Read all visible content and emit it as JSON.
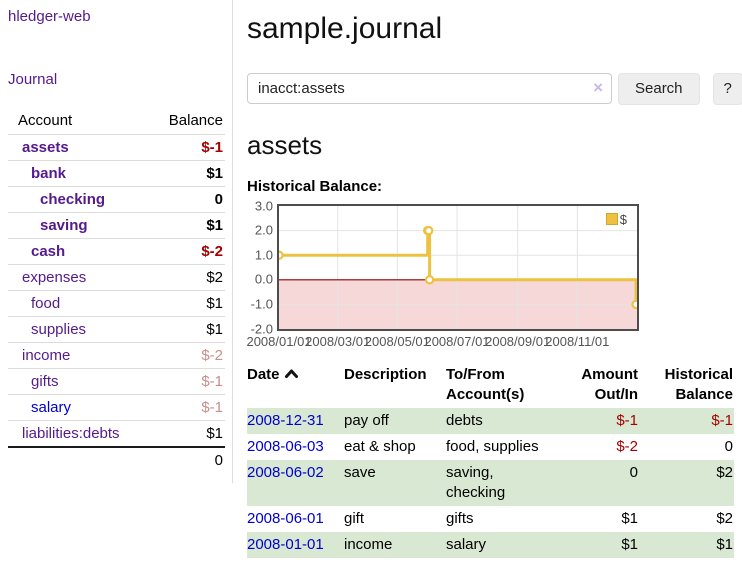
{
  "colors": {
    "purple_link": "#551a8b",
    "blue_link": "#0000cc",
    "negative": "#a40000",
    "negative_muted": "#c98d8d",
    "row_green": "#d9e8d3",
    "chart_yellow": "#edc240",
    "negative_region": "#f7d8d8",
    "zero_line": "#8b0000",
    "gridline": "#e4e4e4"
  },
  "app": {
    "brand": "hledger-web"
  },
  "sidebar": {
    "journal_link": "Journal",
    "accounts_table": {
      "account_header": "Account",
      "balance_header": "Balance",
      "rows": [
        {
          "account": "assets",
          "balance": "$-1",
          "level": 1,
          "bold": true,
          "balance_class": "neg",
          "link": "purple"
        },
        {
          "account": "bank",
          "balance": "$1",
          "level": 2,
          "bold": true,
          "balance_class": "",
          "link": "purple"
        },
        {
          "account": "checking",
          "balance": "0",
          "level": 3,
          "bold": true,
          "balance_class": "",
          "link": "purple"
        },
        {
          "account": "saving",
          "balance": "$1",
          "level": 3,
          "bold": true,
          "balance_class": "",
          "link": "purple"
        },
        {
          "account": "cash",
          "balance": "$-2",
          "level": 2,
          "bold": true,
          "balance_class": "neg",
          "link": "purple"
        },
        {
          "account": "expenses",
          "balance": "$2",
          "level": 1,
          "bold": false,
          "balance_class": "",
          "link": "purple"
        },
        {
          "account": "food",
          "balance": "$1",
          "level": 2,
          "bold": false,
          "balance_class": "",
          "link": "purple"
        },
        {
          "account": "supplies",
          "balance": "$1",
          "level": 2,
          "bold": false,
          "balance_class": "",
          "link": "purple"
        },
        {
          "account": "income",
          "balance": "$-2",
          "level": 1,
          "bold": false,
          "balance_class": "neg-muted",
          "link": "purple"
        },
        {
          "account": "gifts",
          "balance": "$-1",
          "level": 2,
          "bold": false,
          "balance_class": "neg-muted",
          "link": "purple"
        },
        {
          "account": "salary",
          "balance": "$-1",
          "level": 2,
          "bold": false,
          "balance_class": "neg-muted",
          "link": "blue"
        },
        {
          "account": "liabilities:debts",
          "balance": "$1",
          "level": 1,
          "bold": false,
          "balance_class": "",
          "link": "purple"
        }
      ],
      "total": "0"
    }
  },
  "main": {
    "title": "sample.journal",
    "search": {
      "value": "inacct:assets",
      "clear_icon": "×",
      "search_button": "Search",
      "help_button": "?"
    },
    "account_heading": "assets",
    "chart_heading": "Historical Balance:",
    "register": {
      "headers": {
        "date": "Date",
        "description": "Description",
        "accounts": "To/From Account(s)",
        "amount": "Amount Out/In",
        "balance": "Historical Balance"
      },
      "rows": [
        {
          "date": "2008-12-31",
          "description": "pay off",
          "accounts": "debts",
          "amount": "$-1",
          "balance": "$-1",
          "amount_class": "neg",
          "balance_class": "neg"
        },
        {
          "date": "2008-06-03",
          "description": "eat & shop",
          "accounts": "food, supplies",
          "amount": "$-2",
          "balance": "0",
          "amount_class": "neg",
          "balance_class": ""
        },
        {
          "date": "2008-06-02",
          "description": "save",
          "accounts": "saving, checking",
          "amount": "0",
          "balance": "$2",
          "amount_class": "",
          "balance_class": ""
        },
        {
          "date": "2008-06-01",
          "description": "gift",
          "accounts": "gifts",
          "amount": "$1",
          "balance": "$2",
          "amount_class": "",
          "balance_class": ""
        },
        {
          "date": "2008-01-01",
          "description": "income",
          "accounts": "salary",
          "amount": "$1",
          "balance": "$1",
          "amount_class": "",
          "balance_class": ""
        }
      ]
    }
  },
  "chart_data": {
    "type": "line",
    "title": "Historical Balance",
    "steps": true,
    "legend": {
      "label": "$",
      "position": "top-right"
    },
    "x_ticks": [
      "2008/01/01",
      "2008/03/01",
      "2008/05/01",
      "2008/07/01",
      "2008/09/01",
      "2008/11/01"
    ],
    "y_ticks": [
      3.0,
      2.0,
      1.0,
      0.0,
      -1.0,
      -2.0
    ],
    "xlim": [
      "2008-01-01",
      "2009-01-01"
    ],
    "ylim": [
      -2,
      3
    ],
    "grid": true,
    "series": [
      {
        "name": "$",
        "color": "#edc240",
        "points": [
          [
            "2008-01-01",
            1
          ],
          [
            "2008-06-01",
            2
          ],
          [
            "2008-06-02",
            2
          ],
          [
            "2008-06-03",
            0
          ],
          [
            "2008-12-31",
            -1
          ]
        ]
      }
    ]
  }
}
